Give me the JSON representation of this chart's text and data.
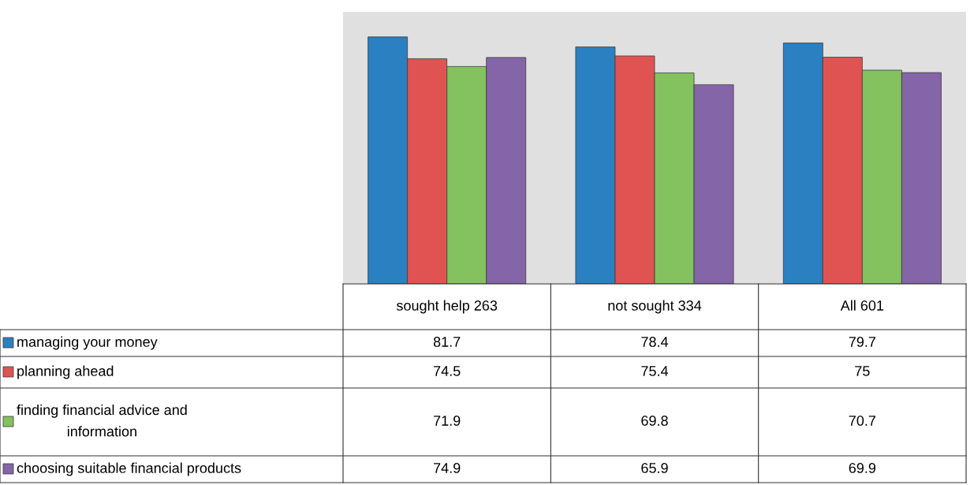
{
  "chart_data": {
    "type": "bar",
    "categories": [
      "sought help 263",
      "not sought 334",
      "All 601"
    ],
    "series": [
      {
        "name": "managing your money",
        "color": "#2a80c0",
        "values": [
          81.7,
          78.4,
          79.7
        ]
      },
      {
        "name": "planning ahead",
        "color": "#e05353",
        "values": [
          74.5,
          75.4,
          75
        ]
      },
      {
        "name": "finding financial advice and\ninformation",
        "color": "#84c15f",
        "values": [
          71.9,
          69.8,
          70.7
        ]
      },
      {
        "name": "choosing suitable financial products",
        "color": "#8465a8",
        "values": [
          74.9,
          65.9,
          69.9
        ]
      }
    ],
    "ylim": [
      0,
      90
    ],
    "data_labels": true,
    "legend": "bottom"
  }
}
